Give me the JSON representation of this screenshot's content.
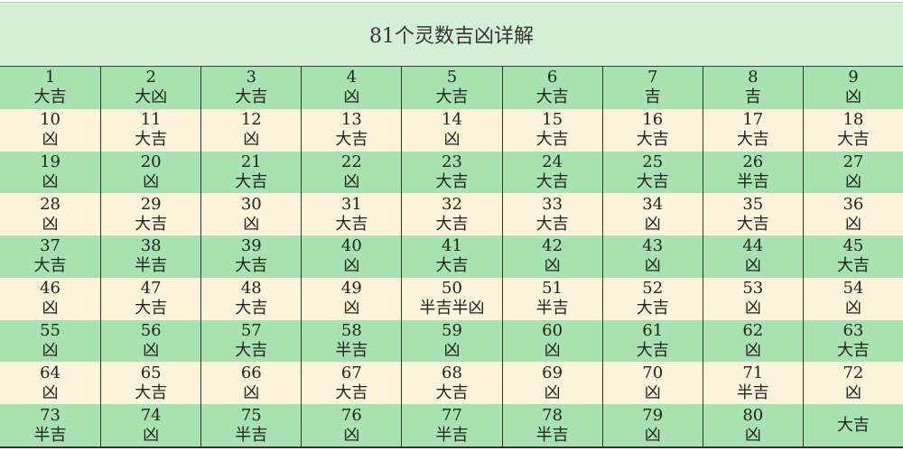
{
  "title": "81个灵数吉凶详解",
  "colors": {
    "title_bg": "#d3efd6",
    "row_green": "#a8e2b0",
    "row_cream": "#fdf3da"
  },
  "cells": [
    {
      "n": "1",
      "v": "大吉"
    },
    {
      "n": "2",
      "v": "大凶"
    },
    {
      "n": "3",
      "v": "大吉"
    },
    {
      "n": "4",
      "v": "凶"
    },
    {
      "n": "5",
      "v": "大吉"
    },
    {
      "n": "6",
      "v": "大吉"
    },
    {
      "n": "7",
      "v": "吉"
    },
    {
      "n": "8",
      "v": "吉"
    },
    {
      "n": "9",
      "v": "凶"
    },
    {
      "n": "10",
      "v": "凶"
    },
    {
      "n": "11",
      "v": "大吉"
    },
    {
      "n": "12",
      "v": "凶"
    },
    {
      "n": "13",
      "v": "大吉"
    },
    {
      "n": "14",
      "v": "凶"
    },
    {
      "n": "15",
      "v": "大吉"
    },
    {
      "n": "16",
      "v": "大吉"
    },
    {
      "n": "17",
      "v": "大吉"
    },
    {
      "n": "18",
      "v": "大吉"
    },
    {
      "n": "19",
      "v": "凶"
    },
    {
      "n": "20",
      "v": "凶"
    },
    {
      "n": "21",
      "v": "大吉"
    },
    {
      "n": "22",
      "v": "凶"
    },
    {
      "n": "23",
      "v": "大吉"
    },
    {
      "n": "24",
      "v": "大吉"
    },
    {
      "n": "25",
      "v": "大吉"
    },
    {
      "n": "26",
      "v": "半吉"
    },
    {
      "n": "27",
      "v": "凶"
    },
    {
      "n": "28",
      "v": "凶"
    },
    {
      "n": "29",
      "v": "大吉"
    },
    {
      "n": "30",
      "v": "凶"
    },
    {
      "n": "31",
      "v": "大吉"
    },
    {
      "n": "32",
      "v": "大吉"
    },
    {
      "n": "33",
      "v": "大吉"
    },
    {
      "n": "34",
      "v": "凶"
    },
    {
      "n": "35",
      "v": "大吉"
    },
    {
      "n": "36",
      "v": "凶"
    },
    {
      "n": "37",
      "v": "大吉"
    },
    {
      "n": "38",
      "v": "半吉"
    },
    {
      "n": "39",
      "v": "大吉"
    },
    {
      "n": "40",
      "v": "凶"
    },
    {
      "n": "41",
      "v": "大吉"
    },
    {
      "n": "42",
      "v": "凶"
    },
    {
      "n": "43",
      "v": "凶"
    },
    {
      "n": "44",
      "v": "凶"
    },
    {
      "n": "45",
      "v": "大吉"
    },
    {
      "n": "46",
      "v": "凶"
    },
    {
      "n": "47",
      "v": "大吉"
    },
    {
      "n": "48",
      "v": "大吉"
    },
    {
      "n": "49",
      "v": "凶"
    },
    {
      "n": "50",
      "v": "半吉半凶"
    },
    {
      "n": "51",
      "v": "半吉"
    },
    {
      "n": "52",
      "v": "大吉"
    },
    {
      "n": "53",
      "v": "凶"
    },
    {
      "n": "54",
      "v": "凶"
    },
    {
      "n": "55",
      "v": "凶"
    },
    {
      "n": "56",
      "v": "凶"
    },
    {
      "n": "57",
      "v": "大吉"
    },
    {
      "n": "58",
      "v": "半吉"
    },
    {
      "n": "59",
      "v": "凶"
    },
    {
      "n": "60",
      "v": "凶"
    },
    {
      "n": "61",
      "v": "大吉"
    },
    {
      "n": "62",
      "v": "凶"
    },
    {
      "n": "63",
      "v": "大吉"
    },
    {
      "n": "64",
      "v": "凶"
    },
    {
      "n": "65",
      "v": "大吉"
    },
    {
      "n": "66",
      "v": "凶"
    },
    {
      "n": "67",
      "v": "大吉"
    },
    {
      "n": "68",
      "v": "大吉"
    },
    {
      "n": "69",
      "v": "凶"
    },
    {
      "n": "70",
      "v": "凶"
    },
    {
      "n": "71",
      "v": "半吉"
    },
    {
      "n": "72",
      "v": "凶"
    },
    {
      "n": "73",
      "v": "半吉"
    },
    {
      "n": "74",
      "v": "凶"
    },
    {
      "n": "75",
      "v": "半吉"
    },
    {
      "n": "76",
      "v": "凶"
    },
    {
      "n": "77",
      "v": "半吉"
    },
    {
      "n": "78",
      "v": "半吉"
    },
    {
      "n": "79",
      "v": "凶"
    },
    {
      "n": "80",
      "v": "凶"
    },
    {
      "n": "",
      "v": "大吉"
    }
  ]
}
